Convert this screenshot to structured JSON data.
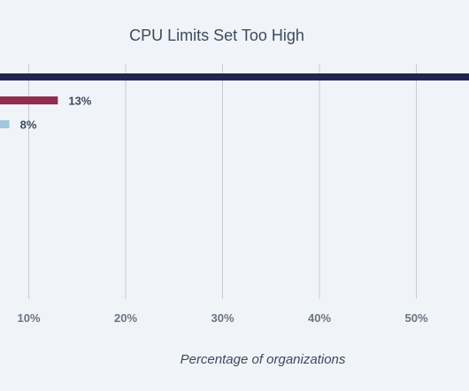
{
  "chart_data": {
    "type": "bar",
    "orientation": "horizontal",
    "title": "CPU Limits Set Too High",
    "xlabel": "Percentage of organizations",
    "ylabel": "",
    "x_ticks": [
      "10%",
      "20%",
      "30%",
      "40%",
      "50%"
    ],
    "x_tick_values": [
      10,
      20,
      30,
      40,
      50
    ],
    "grid": true,
    "series": [
      {
        "value": 60,
        "label": "",
        "color": "#1f2550"
      },
      {
        "value": 13,
        "label": "13%",
        "color": "#8f2c4f"
      },
      {
        "value": 8,
        "label": "8%",
        "color": "#9fc7dd"
      }
    ]
  }
}
